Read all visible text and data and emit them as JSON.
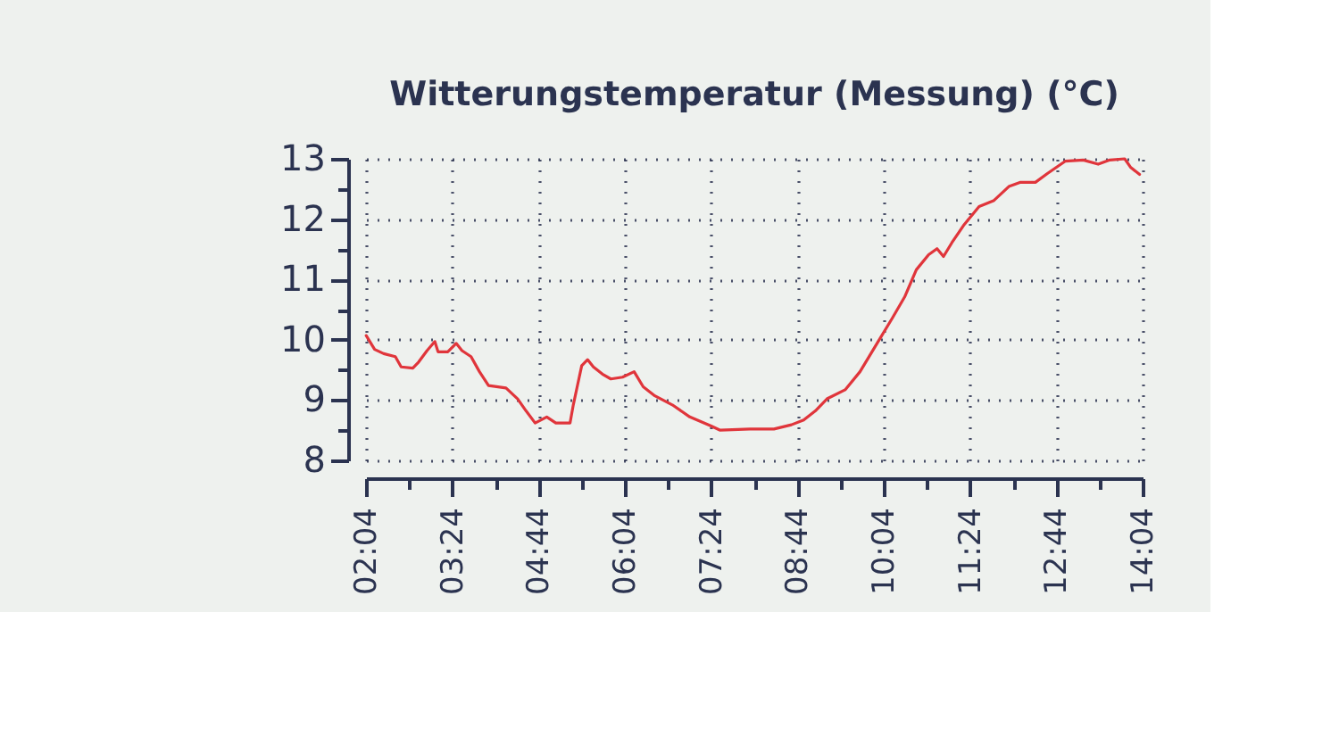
{
  "chart_data": {
    "type": "line",
    "title": "Witterungstemperatur (Messung) (°C)",
    "x": [
      2.07,
      2.2,
      2.34,
      2.52,
      2.61,
      2.79,
      2.88,
      3.01,
      3.13,
      3.18,
      3.33,
      3.46,
      3.55,
      3.69,
      3.82,
      3.96,
      4.23,
      4.41,
      4.54,
      4.68,
      4.86,
      5.0,
      5.22,
      5.27,
      5.33,
      5.4,
      5.49,
      5.58,
      5.72,
      5.85,
      6.03,
      6.21,
      6.35,
      6.53,
      6.8,
      7.07,
      7.4,
      7.54,
      8.0,
      8.37,
      8.64,
      8.83,
      9.01,
      9.19,
      9.47,
      9.7,
      9.98,
      10.2,
      10.39,
      10.57,
      10.76,
      10.89,
      10.99,
      11.12,
      11.31,
      11.54,
      11.77,
      12.0,
      12.18,
      12.41,
      12.6,
      12.87,
      13.15,
      13.38,
      13.56,
      13.79,
      13.88,
      14.02
    ],
    "series": [
      {
        "color": "#e0353b",
        "values": [
          10.07,
          9.84,
          9.77,
          9.72,
          9.55,
          9.53,
          9.63,
          9.82,
          9.97,
          9.8,
          9.8,
          9.94,
          9.82,
          9.72,
          9.47,
          9.24,
          9.2,
          9.02,
          8.82,
          8.62,
          8.72,
          8.62,
          8.62,
          8.92,
          9.22,
          9.57,
          9.67,
          9.55,
          9.43,
          9.35,
          9.38,
          9.47,
          9.22,
          9.07,
          8.92,
          8.72,
          8.57,
          8.5,
          8.52,
          8.52,
          8.59,
          8.67,
          8.82,
          9.02,
          9.17,
          9.47,
          9.97,
          10.36,
          10.71,
          11.16,
          11.41,
          11.51,
          11.38,
          11.61,
          11.91,
          12.21,
          12.31,
          12.54,
          12.61,
          12.61,
          12.76,
          12.96,
          12.98,
          12.91,
          12.98,
          13.0,
          12.86,
          12.74
        ]
      }
    ],
    "xlim": [
      2.0667,
      14.0667
    ],
    "xticks": [
      {
        "value": 2.0667,
        "label": "02:04"
      },
      {
        "value": 2.7333,
        "label": null
      },
      {
        "value": 3.4,
        "label": "03:24"
      },
      {
        "value": 4.0667,
        "label": null
      },
      {
        "value": 4.7333,
        "label": "04:44"
      },
      {
        "value": 5.4,
        "label": null
      },
      {
        "value": 6.0667,
        "label": "06:04"
      },
      {
        "value": 6.7333,
        "label": null
      },
      {
        "value": 7.4,
        "label": "07:24"
      },
      {
        "value": 8.0667,
        "label": null
      },
      {
        "value": 8.7333,
        "label": "08:44"
      },
      {
        "value": 9.4,
        "label": null
      },
      {
        "value": 10.0667,
        "label": "10:04"
      },
      {
        "value": 10.7333,
        "label": null
      },
      {
        "value": 11.4,
        "label": "11:24"
      },
      {
        "value": 12.0667,
        "label": null
      },
      {
        "value": 12.7333,
        "label": "12:44"
      },
      {
        "value": 13.4,
        "label": null
      },
      {
        "value": 14.0667,
        "label": "14:04"
      }
    ],
    "ylim": [
      8,
      13
    ],
    "yticks": [
      8,
      {
        "value": 8.5,
        "label": null
      },
      9,
      {
        "value": 9.5,
        "label": null
      },
      10,
      {
        "value": 10.5,
        "label": null
      },
      11,
      {
        "value": 11.5,
        "label": null
      },
      12,
      {
        "value": 12.5,
        "label": null
      },
      13
    ],
    "grid": true,
    "line_style": "solid"
  }
}
